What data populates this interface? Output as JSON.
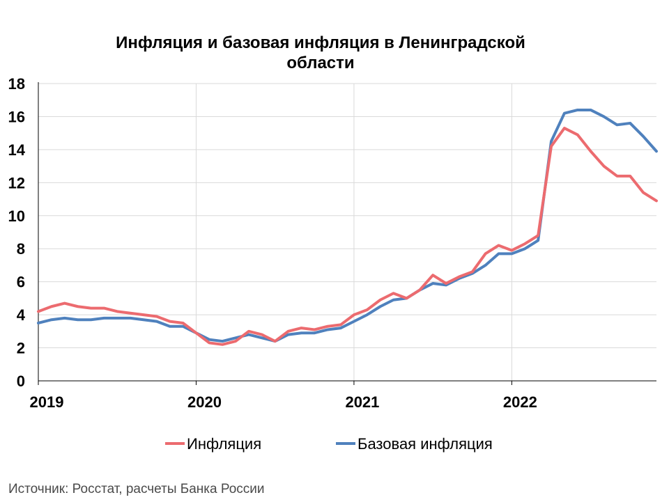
{
  "chart_data": {
    "type": "line",
    "title_lines": [
      "Инфляция и базовая инфляция в Ленинградской",
      "области"
    ],
    "ylim": [
      0,
      18
    ],
    "yticks": [
      0,
      2,
      4,
      6,
      8,
      10,
      12,
      14,
      16,
      18
    ],
    "x_tick_labels": [
      {
        "label": "2019",
        "month_index": 0
      },
      {
        "label": "2020",
        "month_index": 12
      },
      {
        "label": "2021",
        "month_index": 24
      },
      {
        "label": "2022",
        "month_index": 36
      }
    ],
    "grid": true,
    "legend_position": "bottom",
    "x": [
      "2019-01",
      "2019-02",
      "2019-03",
      "2019-04",
      "2019-05",
      "2019-06",
      "2019-07",
      "2019-08",
      "2019-09",
      "2019-10",
      "2019-11",
      "2019-12",
      "2020-01",
      "2020-02",
      "2020-03",
      "2020-04",
      "2020-05",
      "2020-06",
      "2020-07",
      "2020-08",
      "2020-09",
      "2020-10",
      "2020-11",
      "2020-12",
      "2021-01",
      "2021-02",
      "2021-03",
      "2021-04",
      "2021-05",
      "2021-06",
      "2021-07",
      "2021-08",
      "2021-09",
      "2021-10",
      "2021-11",
      "2021-12",
      "2022-01",
      "2022-02",
      "2022-03",
      "2022-04",
      "2022-05",
      "2022-06",
      "2022-07",
      "2022-08",
      "2022-09",
      "2022-10",
      "2022-11",
      "2022-12"
    ],
    "series": [
      {
        "name": "Инфляция",
        "color": "#ec6b6f",
        "values": [
          4.2,
          4.5,
          4.7,
          4.5,
          4.4,
          4.4,
          4.2,
          4.1,
          4.0,
          3.9,
          3.6,
          3.5,
          2.9,
          2.3,
          2.2,
          2.4,
          3.0,
          2.8,
          2.4,
          3.0,
          3.2,
          3.1,
          3.3,
          3.4,
          4.0,
          4.3,
          4.9,
          5.3,
          5.0,
          5.5,
          6.4,
          5.9,
          6.3,
          6.6,
          7.7,
          8.2,
          7.9,
          8.3,
          8.8,
          14.2,
          15.3,
          14.9,
          13.9,
          13.0,
          12.4,
          12.4,
          11.4,
          10.9
        ]
      },
      {
        "name": "Базовая инфляция",
        "color": "#4f81bd",
        "values": [
          3.5,
          3.7,
          3.8,
          3.7,
          3.7,
          3.8,
          3.8,
          3.8,
          3.7,
          3.6,
          3.3,
          3.3,
          2.9,
          2.5,
          2.4,
          2.6,
          2.8,
          2.6,
          2.4,
          2.8,
          2.9,
          2.9,
          3.1,
          3.2,
          3.6,
          4.0,
          4.5,
          4.9,
          5.0,
          5.5,
          5.9,
          5.8,
          6.2,
          6.5,
          7.0,
          7.7,
          7.7,
          8.0,
          8.5,
          14.5,
          16.2,
          16.4,
          16.4,
          16.0,
          15.5,
          15.6,
          14.8,
          13.9
        ]
      }
    ]
  },
  "source_text": "Источник: Росстат, расчеты Банка России"
}
